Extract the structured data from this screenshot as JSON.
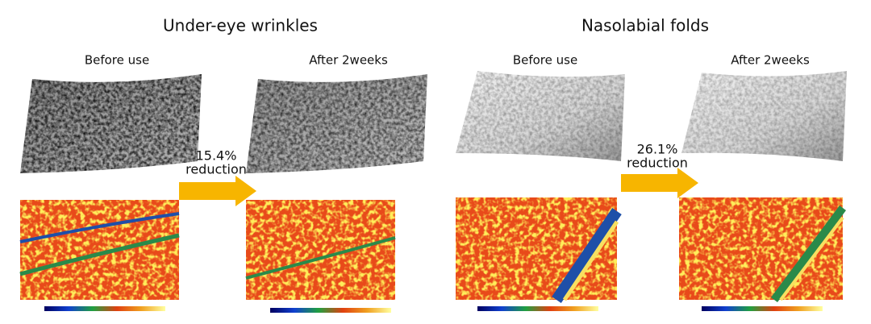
{
  "panels": [
    {
      "title": "Under-eye wrinkles",
      "before_label": "Before use",
      "after_label": "After 2weeks",
      "change": "15.4%",
      "change_label": "reduction"
    },
    {
      "title": "Nasolabial folds",
      "before_label": "Before use",
      "after_label": "After 2weeks",
      "change": "26.1%",
      "change_label": "reduction"
    }
  ]
}
